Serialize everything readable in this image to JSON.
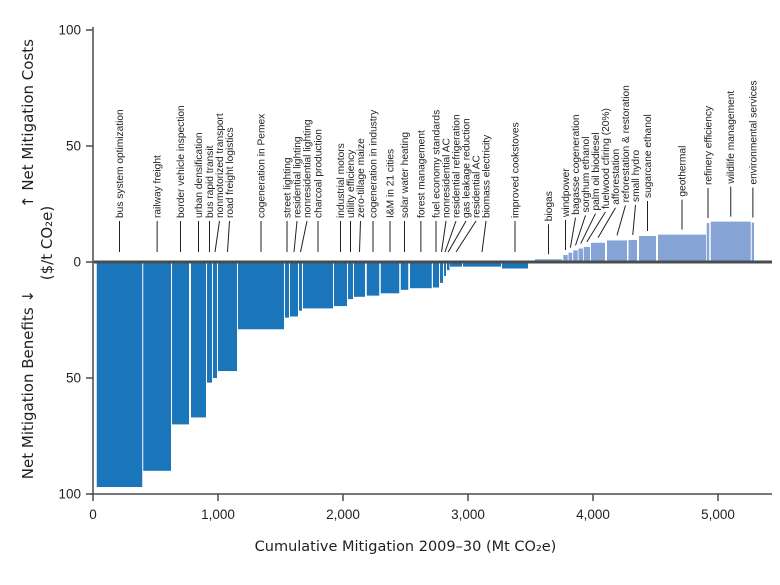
{
  "chart_data": {
    "type": "bar",
    "variant": "marginal-abatement-cost-curve",
    "xlabel": "Cumulative Mitigation 2009–30 (Mt CO₂e)",
    "ylabel_top": "↑ Net Mitigation Costs",
    "ylabel_bottom": "Net Mitigation Benefits ↓",
    "ylabel_unit": "($/t CO₂e)",
    "xlim": [
      0,
      5430
    ],
    "ylim": [
      -102,
      102
    ],
    "grid": false,
    "legend": "none",
    "bar_semantics": "bar width = cumulative mitigation potential (Mt CO2e), bar height = net mitigation cost ($/t CO2e)",
    "x_ticks": [
      {
        "value": 0,
        "label": "0"
      },
      {
        "value": 1000,
        "label": "1,000"
      },
      {
        "value": 2000,
        "label": "2,000"
      },
      {
        "value": 3000,
        "label": "3,000"
      },
      {
        "value": 4000,
        "label": "4,000"
      },
      {
        "value": 5000,
        "label": "5,000"
      }
    ],
    "y_ticks": [
      {
        "value": 100,
        "label": "100"
      },
      {
        "value": 50,
        "label": "50"
      },
      {
        "value": 0,
        "label": "0"
      },
      {
        "value": -50,
        "label": "50"
      },
      {
        "value": -100,
        "label": "100"
      }
    ],
    "colors": {
      "net_benefit_bar": "#1b75bb",
      "net_cost_bar": "#85a3d4",
      "zero_line": "#4a4b4d",
      "axis": "#4a4b4d",
      "text": "#231f20"
    },
    "measures": [
      {
        "name": "bus system optimization",
        "from_mt": 30,
        "to_mt": 394,
        "cost": -97
      },
      {
        "name": "railway freight",
        "from_mt": 402,
        "to_mt": 624,
        "cost": -90
      },
      {
        "name": "border vehicle inspection",
        "from_mt": 632,
        "to_mt": 768,
        "cost": -70
      },
      {
        "name": "urban densification",
        "from_mt": 784,
        "to_mt": 904,
        "cost": -67
      },
      {
        "name": "bus rapid transit",
        "from_mt": 912,
        "to_mt": 952,
        "cost": -52
      },
      {
        "name": "nonmotorized transport",
        "from_mt": 960,
        "to_mt": 992,
        "cost": -50
      },
      {
        "name": "road freight logistics",
        "from_mt": 1000,
        "to_mt": 1152,
        "cost": -47
      },
      {
        "name": "cogeneration in Pemex",
        "from_mt": 1160,
        "to_mt": 1528,
        "cost": -29
      },
      {
        "name": "street lighting",
        "from_mt": 1536,
        "to_mt": 1568,
        "cost": -24
      },
      {
        "name": "residential lighting",
        "from_mt": 1576,
        "to_mt": 1640,
        "cost": -23.5
      },
      {
        "name": "nonresidential lighting",
        "from_mt": 1648,
        "to_mt": 1672,
        "cost": -21
      },
      {
        "name": "charcoal production",
        "from_mt": 1680,
        "to_mt": 1920,
        "cost": -20
      },
      {
        "name": "industrial motors",
        "from_mt": 1928,
        "to_mt": 2032,
        "cost": -19
      },
      {
        "name": "utility efficiency",
        "from_mt": 2040,
        "to_mt": 2080,
        "cost": -16
      },
      {
        "name": "zero-tillage maize",
        "from_mt": 2088,
        "to_mt": 2176,
        "cost": -15
      },
      {
        "name": "cogeneration in industry",
        "from_mt": 2190,
        "to_mt": 2290,
        "cost": -14.5
      },
      {
        "name": "I&M in 21 cities",
        "from_mt": 2302,
        "to_mt": 2450,
        "cost": -13.5
      },
      {
        "name": "solar water heating",
        "from_mt": 2462,
        "to_mt": 2522,
        "cost": -12
      },
      {
        "name": "forest management",
        "from_mt": 2536,
        "to_mt": 2710,
        "cost": -11.3
      },
      {
        "name": "fuel economy standards",
        "from_mt": 2720,
        "to_mt": 2768,
        "cost": -11
      },
      {
        "name": "nonresidential AC",
        "from_mt": 2776,
        "to_mt": 2800,
        "cost": -9
      },
      {
        "name": "residential refrigeration",
        "from_mt": 2808,
        "to_mt": 2824,
        "cost": -6
      },
      {
        "name": "gas leakage reduction",
        "from_mt": 2832,
        "to_mt": 2852,
        "cost": -3.5
      },
      {
        "name": "residential AC",
        "from_mt": 2856,
        "to_mt": 2952,
        "cost": -2
      },
      {
        "name": "biomass electricity",
        "from_mt": 2960,
        "to_mt": 3264,
        "cost": -2
      },
      {
        "name": "improved cookstoves",
        "from_mt": 3272,
        "to_mt": 3480,
        "cost": -2.8
      },
      {
        "name": "biogas",
        "from_mt": 3536,
        "to_mt": 3752,
        "cost": 1.2
      },
      {
        "name": "windpower",
        "from_mt": 3762,
        "to_mt": 3798,
        "cost": 3
      },
      {
        "name": "bagasse cogeneration",
        "from_mt": 3804,
        "to_mt": 3834,
        "cost": 4
      },
      {
        "name": "sorghum ethanol",
        "from_mt": 3842,
        "to_mt": 3878,
        "cost": 5
      },
      {
        "name": "palm oil biodiesel",
        "from_mt": 3884,
        "to_mt": 3920,
        "cost": 5.8
      },
      {
        "name": "fuelwood cfiring (20%)",
        "from_mt": 3926,
        "to_mt": 3976,
        "cost": 6.5
      },
      {
        "name": "afforestation",
        "from_mt": 3984,
        "to_mt": 4096,
        "cost": 8.3
      },
      {
        "name": "reforestation & restoration",
        "from_mt": 4112,
        "to_mt": 4272,
        "cost": 9.3
      },
      {
        "name": "small hydro",
        "from_mt": 4284,
        "to_mt": 4352,
        "cost": 9.5
      },
      {
        "name": "sugarcane ethanol",
        "from_mt": 4368,
        "to_mt": 4504,
        "cost": 11.2
      },
      {
        "name": "geothermal",
        "from_mt": 4520,
        "to_mt": 4904,
        "cost": 11.8
      },
      {
        "name": "refinery efficiency",
        "from_mt": 4910,
        "to_mt": 4930,
        "cost": 16.8
      },
      {
        "name": "wildlife management",
        "from_mt": 4942,
        "to_mt": 5262,
        "cost": 17.4
      },
      {
        "name": "environmental services",
        "from_mt": 5270,
        "to_mt": 5288,
        "cost": 17
      }
    ]
  }
}
